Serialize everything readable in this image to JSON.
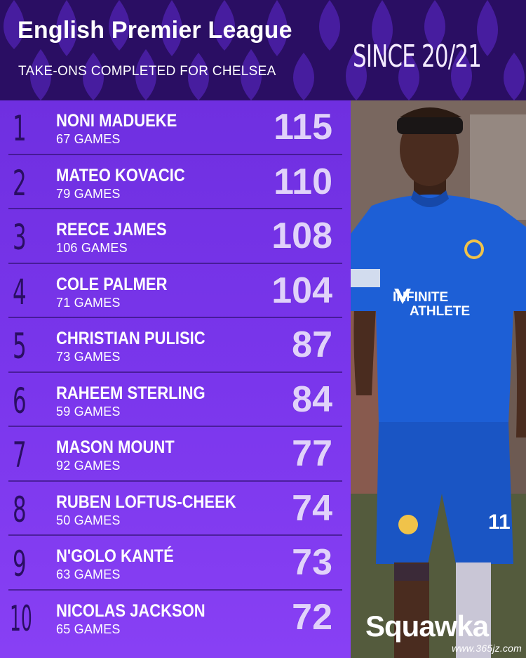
{
  "header": {
    "title": "English Premier League",
    "subtitle": "TAKE-ONS COMPLETED FOR CHELSEA",
    "period": "SINCE 20/21"
  },
  "rows": [
    {
      "rank": "1",
      "name": "NONI MADUEKE",
      "games": "67 GAMES",
      "value": "115"
    },
    {
      "rank": "2",
      "name": "MATEO KOVACIC",
      "games": "79 GAMES",
      "value": "110"
    },
    {
      "rank": "3",
      "name": "REECE JAMES",
      "games": "106 GAMES",
      "value": "108"
    },
    {
      "rank": "4",
      "name": "COLE PALMER",
      "games": "71 GAMES",
      "value": "104"
    },
    {
      "rank": "5",
      "name": "CHRISTIAN PULISIC",
      "games": "73 GAMES",
      "value": "87"
    },
    {
      "rank": "6",
      "name": "RAHEEM STERLING",
      "games": "59 GAMES",
      "value": "84"
    },
    {
      "rank": "7",
      "name": "MASON MOUNT",
      "games": "92 GAMES",
      "value": "77"
    },
    {
      "rank": "8",
      "name": "RUBEN LOFTUS-CHEEK",
      "games": "50 GAMES",
      "value": "74"
    },
    {
      "rank": "9",
      "name": "N'GOLO KANTÉ",
      "games": "63 GAMES",
      "value": "73"
    },
    {
      "rank": "10",
      "name": "NICOLAS JACKSON",
      "games": "65 GAMES",
      "value": "72"
    }
  ],
  "photo": {
    "shirt_sponsor_line1": "INFINITE",
    "shirt_sponsor_line2": "ATHLETE",
    "shirt_number": "11"
  },
  "branding": {
    "logo": "Squawka",
    "watermark": "www.365jz.com"
  },
  "colors": {
    "header_bg": "#2a0e63",
    "list_bg": "#7a36ec",
    "rank_color": "#2a0e63",
    "kit_blue": "#1d5fd6"
  }
}
